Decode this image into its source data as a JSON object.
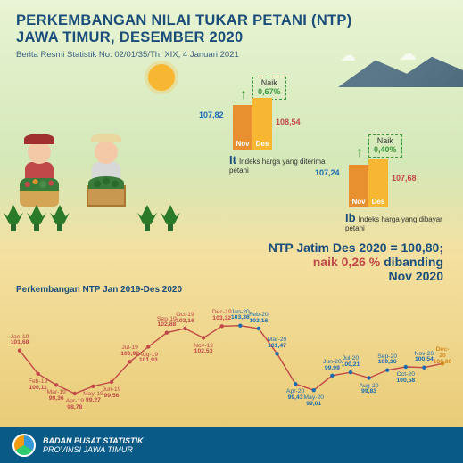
{
  "header": {
    "title_l1": "PERKEMBANGAN NILAI TUKAR PETANI (NTP)",
    "title_l2": "JAWA TIMUR, DESEMBER 2020",
    "subtitle": "Berita Resmi Statistik No. 02/01/35/Th. XIX, 4 Januari 2021"
  },
  "it": {
    "label": "It",
    "desc": "Indeks harga yang diterima petani",
    "nov_label": "Nov",
    "des_label": "Des",
    "val_left": "107,82",
    "val_right": "108,54",
    "naik_label": "Naik",
    "naik_pct": "0,67%",
    "bars": {
      "nov_h": 50,
      "des_h": 58,
      "nov_color": "#e89030",
      "des_color": "#f7b733"
    }
  },
  "ib": {
    "label": "Ib",
    "desc": "Indeks harga yang dibayar petani",
    "nov_label": "Nov",
    "des_label": "Des",
    "val_left": "107,24",
    "val_right": "107,68",
    "naik_label": "Naik",
    "naik_pct": "0,40%",
    "bars": {
      "nov_h": 48,
      "des_h": 54,
      "nov_color": "#e89030",
      "des_color": "#f7b733"
    }
  },
  "summary": {
    "l1": "NTP Jatim Des 2020 = 100,80;",
    "pct": "naik 0,26 %",
    "rest": " dibanding",
    "l3": "Nov 2020"
  },
  "timeseries": {
    "title": "Perkembangan NTP Jan 2019-Des 2020",
    "line_color_2019": "#c04848",
    "line_color_2020": "#1a6bb0",
    "highlight_color": "#d48820",
    "y_min": 98,
    "y_max": 104,
    "points": [
      {
        "m": "Jan-19",
        "v": 101.68,
        "c": "red",
        "pos": "top"
      },
      {
        "m": "Feb-19",
        "v": 100.11,
        "c": "red",
        "pos": "bot"
      },
      {
        "m": "Mar-19",
        "v": 99.36,
        "c": "red",
        "pos": "bot"
      },
      {
        "m": "Apr-19",
        "v": 98.78,
        "c": "red",
        "pos": "bot"
      },
      {
        "m": "May-19",
        "v": 99.27,
        "c": "red",
        "pos": "bot"
      },
      {
        "m": "Jun-19",
        "v": 99.56,
        "c": "red",
        "pos": "bot"
      },
      {
        "m": "Jul-19",
        "v": 100.92,
        "c": "red",
        "pos": "top"
      },
      {
        "m": "Aug-19",
        "v": 101.93,
        "c": "red",
        "pos": "bot"
      },
      {
        "m": "Sep-19",
        "v": 102.88,
        "c": "red",
        "pos": "top"
      },
      {
        "m": "Oct-19",
        "v": 103.16,
        "c": "red",
        "pos": "top"
      },
      {
        "m": "Nov-19",
        "v": 102.53,
        "c": "red",
        "pos": "bot"
      },
      {
        "m": "Dec-19",
        "v": 103.32,
        "c": "red",
        "pos": "top"
      },
      {
        "m": "Jan-20",
        "v": 103.36,
        "c": "blue",
        "pos": "top"
      },
      {
        "m": "Feb-20",
        "v": 103.16,
        "c": "blue",
        "pos": "top"
      },
      {
        "m": "Mar-20",
        "v": 101.47,
        "c": "blue",
        "pos": "top"
      },
      {
        "m": "Apr-20",
        "v": 99.43,
        "c": "blue",
        "pos": "bot"
      },
      {
        "m": "May-20",
        "v": 99.01,
        "c": "blue",
        "pos": "bot"
      },
      {
        "m": "Jun-20",
        "v": 99.99,
        "c": "blue",
        "pos": "top"
      },
      {
        "m": "Jul-20",
        "v": 100.21,
        "c": "blue",
        "pos": "top"
      },
      {
        "m": "Aug-20",
        "v": 99.83,
        "c": "blue",
        "pos": "bot"
      },
      {
        "m": "Sep-20",
        "v": 100.36,
        "c": "blue",
        "pos": "top"
      },
      {
        "m": "Oct-20",
        "v": 100.58,
        "c": "blue",
        "pos": "bot"
      },
      {
        "m": "Nov-20",
        "v": 100.54,
        "c": "blue",
        "pos": "top"
      },
      {
        "m": "Dec-20",
        "v": 100.8,
        "c": "orange",
        "pos": "top"
      }
    ]
  },
  "footer": {
    "l1": "BADAN PUSAT STATISTIK",
    "l2": "PROVINSI JAWA TIMUR"
  }
}
